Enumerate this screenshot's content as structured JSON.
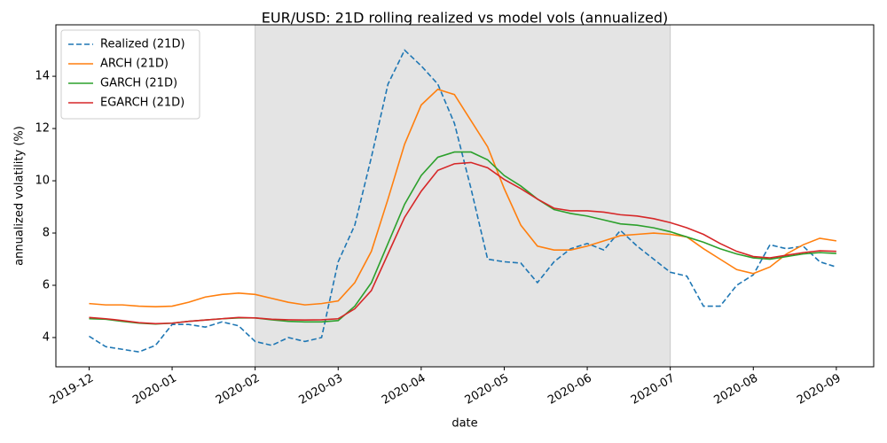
{
  "chart_data": {
    "type": "line",
    "title": "EUR/USD: 21D rolling realized vs model vols (annualized)",
    "x_label": "date",
    "y_label": "annualized volatility (%)",
    "x": [
      0,
      0.2,
      0.4,
      0.6,
      0.8,
      1,
      1.2,
      1.4,
      1.6,
      1.8,
      2,
      2.2,
      2.4,
      2.6,
      2.8,
      3,
      3.2,
      3.4,
      3.6,
      3.8,
      4,
      4.2,
      4.4,
      4.6,
      4.8,
      5,
      5.2,
      5.4,
      5.6,
      5.8,
      6,
      6.2,
      6.4,
      6.6,
      6.8,
      7,
      7.2,
      7.4,
      7.6,
      7.8,
      8,
      8.2,
      8.4,
      8.6,
      8.8,
      9
    ],
    "series": [
      {
        "name": "Realized (21D)",
        "color": "#1f77b4",
        "linestyle": "dashed",
        "values": [
          4.05,
          3.65,
          3.55,
          3.45,
          3.7,
          4.5,
          4.5,
          4.4,
          4.6,
          4.45,
          3.85,
          3.7,
          4.0,
          3.85,
          4.0,
          6.9,
          8.3,
          10.9,
          13.7,
          15.0,
          14.4,
          13.7,
          12.2,
          9.7,
          7.0,
          6.9,
          6.85,
          6.1,
          6.9,
          7.4,
          7.6,
          7.35,
          8.1,
          7.5,
          7.0,
          6.5,
          6.35,
          5.2,
          5.2,
          6.0,
          6.4,
          7.55,
          7.4,
          7.5,
          6.9,
          6.7
        ]
      },
      {
        "name": "ARCH (21D)",
        "color": "#ff7f0e",
        "linestyle": "solid",
        "values": [
          5.3,
          5.25,
          5.25,
          5.2,
          5.18,
          5.2,
          5.35,
          5.55,
          5.65,
          5.7,
          5.65,
          5.5,
          5.35,
          5.25,
          5.3,
          5.4,
          6.1,
          7.3,
          9.3,
          11.4,
          12.9,
          13.5,
          13.3,
          12.3,
          11.3,
          9.7,
          8.3,
          7.5,
          7.35,
          7.35,
          7.5,
          7.7,
          7.9,
          7.95,
          8.0,
          7.95,
          7.85,
          7.4,
          7.0,
          6.6,
          6.45,
          6.7,
          7.2,
          7.55,
          7.8,
          7.7
        ]
      },
      {
        "name": "GARCH (21D)",
        "color": "#2ca02c",
        "linestyle": "solid",
        "values": [
          4.72,
          4.7,
          4.62,
          4.55,
          4.52,
          4.55,
          4.62,
          4.67,
          4.72,
          4.75,
          4.75,
          4.68,
          4.62,
          4.6,
          4.6,
          4.65,
          5.2,
          6.1,
          7.6,
          9.1,
          10.2,
          10.9,
          11.1,
          11.1,
          10.8,
          10.2,
          9.8,
          9.3,
          8.9,
          8.75,
          8.65,
          8.5,
          8.35,
          8.3,
          8.2,
          8.05,
          7.85,
          7.65,
          7.4,
          7.2,
          7.05,
          7.0,
          7.1,
          7.2,
          7.25,
          7.22
        ]
      },
      {
        "name": "EGARCH (21D)",
        "color": "#d62728",
        "linestyle": "solid",
        "values": [
          4.77,
          4.72,
          4.65,
          4.57,
          4.53,
          4.55,
          4.62,
          4.67,
          4.72,
          4.77,
          4.75,
          4.7,
          4.68,
          4.67,
          4.68,
          4.72,
          5.1,
          5.8,
          7.2,
          8.6,
          9.6,
          10.4,
          10.65,
          10.7,
          10.5,
          10.05,
          9.7,
          9.3,
          8.95,
          8.85,
          8.85,
          8.8,
          8.7,
          8.65,
          8.55,
          8.4,
          8.2,
          7.95,
          7.6,
          7.3,
          7.1,
          7.05,
          7.15,
          7.25,
          7.32,
          7.3
        ]
      }
    ],
    "highlight_span": [
      2,
      7
    ],
    "xlim": [
      -0.4,
      9.45
    ],
    "xticks": [
      {
        "value": 0,
        "label": "2019-12"
      },
      {
        "value": 1,
        "label": "2020-01"
      },
      {
        "value": 2,
        "label": "2020-02"
      },
      {
        "value": 3,
        "label": "2020-03"
      },
      {
        "value": 4,
        "label": "2020-04"
      },
      {
        "value": 5,
        "label": "2020-05"
      },
      {
        "value": 6,
        "label": "2020-06"
      },
      {
        "value": 7,
        "label": "2020-07"
      },
      {
        "value": 8,
        "label": "2020-08"
      },
      {
        "value": 9,
        "label": "2020-09"
      }
    ],
    "ylim": [
      2.88,
      15.97
    ],
    "yticks": [
      4,
      6,
      8,
      10,
      12,
      14
    ],
    "legend": "upper left"
  }
}
